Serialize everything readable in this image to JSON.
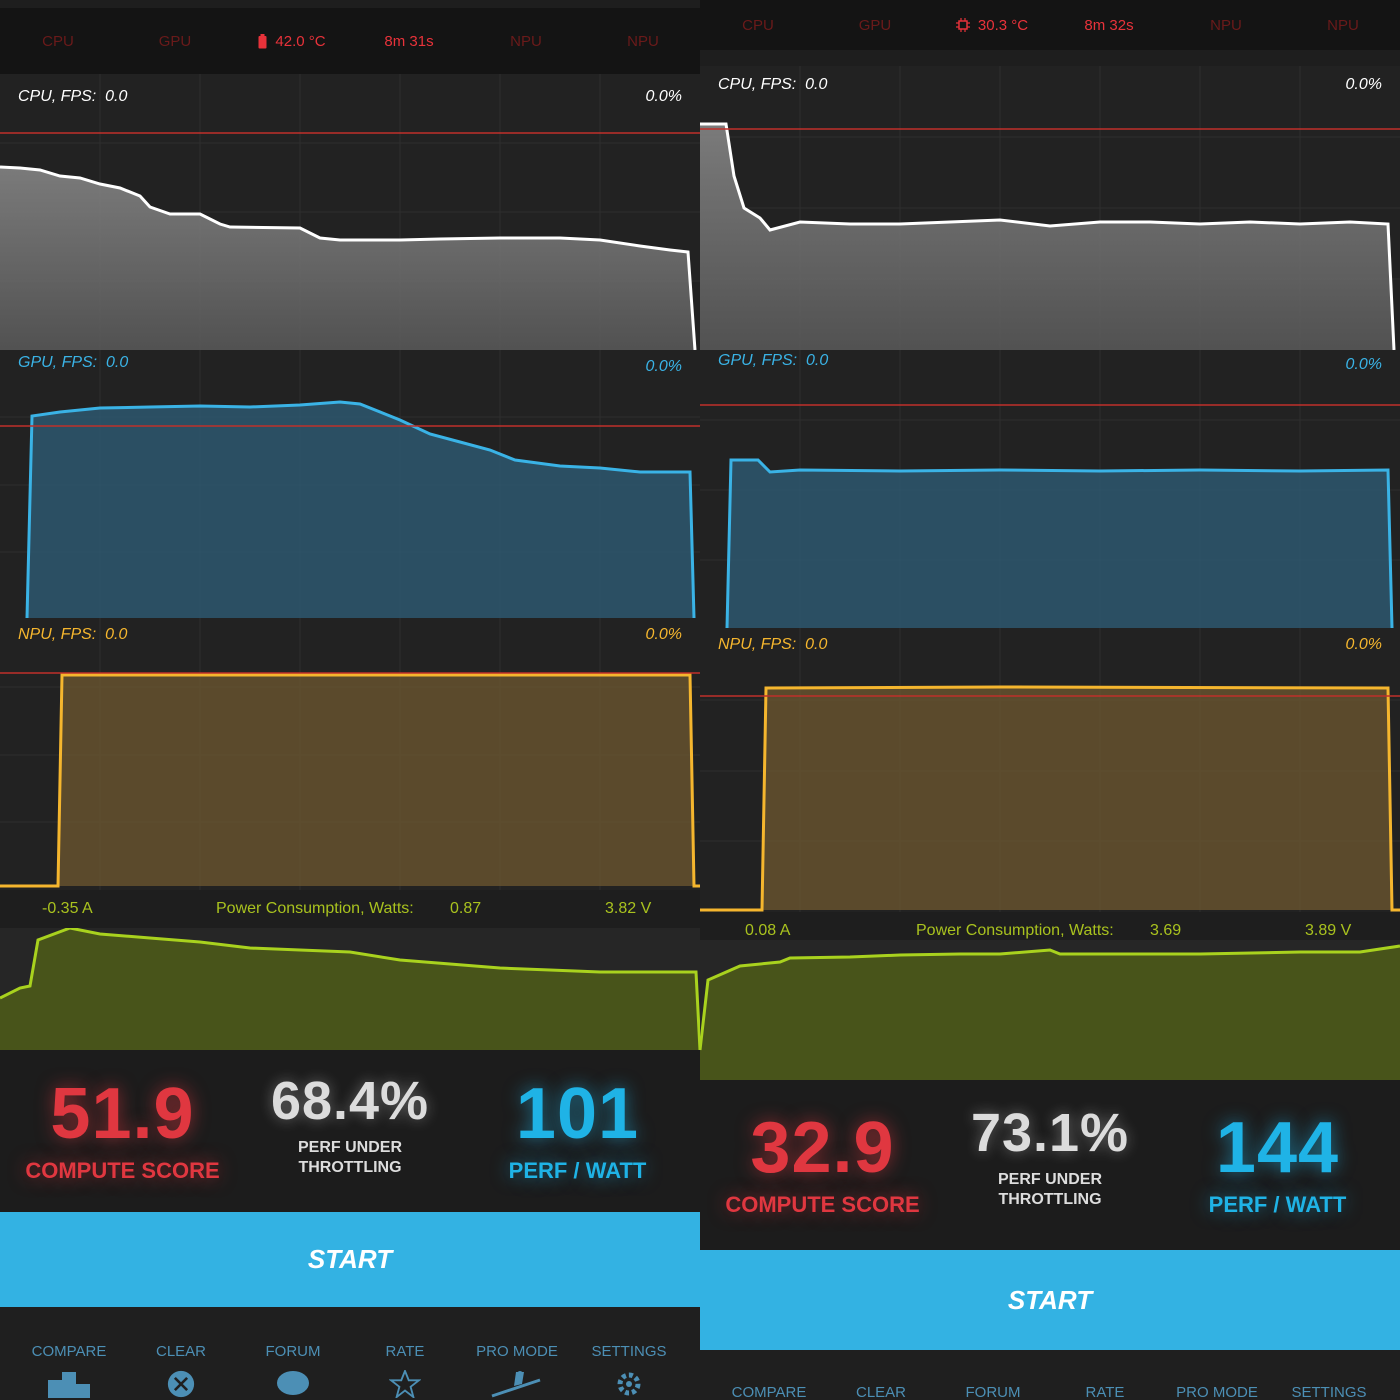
{
  "panels": [
    {
      "status": {
        "items": [
          "CPU",
          "GPU",
          "42.0 °C",
          "8m 31s",
          "NPU",
          "NPU"
        ],
        "temp_icon": "battery-icon",
        "accent": "#e8323a"
      },
      "graphs": {
        "cpu": {
          "label": "CPU, FPS:",
          "fps": "0.0",
          "percent": "0.0%",
          "color": "#ffffff"
        },
        "gpu": {
          "label": "GPU, FPS:",
          "fps": "0.0",
          "percent": "0.0%",
          "color": "#3ab3e6"
        },
        "npu": {
          "label": "NPU, FPS:",
          "fps": "0.0",
          "percent": "0.0%",
          "color": "#f5b62e"
        }
      },
      "power": {
        "current": "-0.35 A",
        "label": "Power Consumption, Watts:",
        "watts": "0.87",
        "voltage": "3.82 V"
      },
      "scores": {
        "compute": {
          "value": "51.9",
          "label": "COMPUTE SCORE"
        },
        "throttle": {
          "value": "68.4%",
          "label_line1": "PERF UNDER",
          "label_line2": "THROTTLING"
        },
        "perf_watt": {
          "value": "101",
          "label": "PERF / WATT"
        }
      },
      "start_label": "START",
      "nav": [
        "COMPARE",
        "CLEAR",
        "FORUM",
        "RATE",
        "PRO MODE",
        "SETTINGS"
      ]
    },
    {
      "status": {
        "items": [
          "CPU",
          "GPU",
          "30.3 °C",
          "8m 32s",
          "NPU",
          "NPU"
        ],
        "temp_icon": "cpu-chip-icon",
        "accent": "#e8323a"
      },
      "graphs": {
        "cpu": {
          "label": "CPU, FPS:",
          "fps": "0.0",
          "percent": "0.0%",
          "color": "#ffffff"
        },
        "gpu": {
          "label": "GPU, FPS:",
          "fps": "0.0",
          "percent": "0.0%",
          "color": "#3ab3e6"
        },
        "npu": {
          "label": "NPU, FPS:",
          "fps": "0.0",
          "percent": "0.0%",
          "color": "#f5b62e"
        }
      },
      "power": {
        "current": "0.08 A",
        "label": "Power Consumption, Watts:",
        "watts": "3.69",
        "voltage": "3.89 V"
      },
      "scores": {
        "compute": {
          "value": "32.9",
          "label": "COMPUTE SCORE"
        },
        "throttle": {
          "value": "73.1%",
          "label_line1": "PERF UNDER",
          "label_line2": "THROTTLING"
        },
        "perf_watt": {
          "value": "144",
          "label": "PERF / WATT"
        }
      },
      "start_label": "START",
      "nav": [
        "COMPARE",
        "CLEAR",
        "FORUM",
        "RATE",
        "PRO MODE",
        "SETTINGS"
      ]
    }
  ]
}
